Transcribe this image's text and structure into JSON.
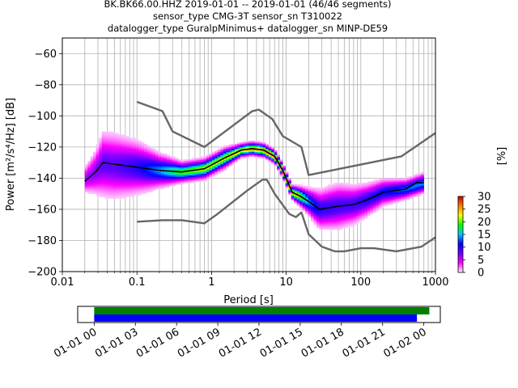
{
  "chart_data": {
    "type": "heatmap",
    "title_lines": [
      "BK.BK66.00.HHZ   2019-01-01 -- 2019-01-01  (46/46 segments)",
      "sensor_type CMG-3T sensor_sn T310022",
      "datalogger_type GuralpMinimus+ datalogger_sn MINP-DE59"
    ],
    "xlabel": "Period [s]",
    "ylabel": "Power [m²/s⁴/Hz] [dB]",
    "x_scale": "log",
    "xlim": [
      0.01,
      1000
    ],
    "ylim": [
      -200,
      -50
    ],
    "x_ticks": [
      {
        "value": 0.01,
        "label": "0.01"
      },
      {
        "value": 0.1,
        "label": "0.1"
      },
      {
        "value": 1,
        "label": "1"
      },
      {
        "value": 10,
        "label": "10"
      },
      {
        "value": 100,
        "label": "100"
      },
      {
        "value": 1000,
        "label": "1000"
      }
    ],
    "y_ticks": [
      {
        "value": -60,
        "label": "−60"
      },
      {
        "value": -80,
        "label": "−80"
      },
      {
        "value": -100,
        "label": "−100"
      },
      {
        "value": -120,
        "label": "−120"
      },
      {
        "value": -140,
        "label": "−140"
      },
      {
        "value": -160,
        "label": "−160"
      },
      {
        "value": -180,
        "label": "−180"
      },
      {
        "value": -200,
        "label": "−200"
      }
    ],
    "grid": true,
    "colorbar": {
      "label": "[%]",
      "min": 0,
      "max": 30,
      "ticks": [
        {
          "value": 0,
          "label": "0"
        },
        {
          "value": 5,
          "label": "5"
        },
        {
          "value": 10,
          "label": "10"
        },
        {
          "value": 15,
          "label": "15"
        },
        {
          "value": 20,
          "label": "20"
        },
        {
          "value": 25,
          "label": "25"
        },
        {
          "value": 30,
          "label": "30"
        }
      ],
      "colors": [
        "#ffffff",
        "#ff00ff",
        "#6a00ff",
        "#0000ff",
        "#00c8ff",
        "#00ff00",
        "#ffff00",
        "#ff8000",
        "#c80000"
      ]
    },
    "series": [
      {
        "color": "#666666",
        "points": [
          [
            0.1,
            -91
          ],
          [
            0.22,
            -97
          ],
          [
            0.3,
            -110
          ],
          [
            0.8,
            -120
          ],
          [
            3.5,
            -97
          ],
          [
            4.3,
            -96
          ],
          [
            6.5,
            -102
          ],
          [
            9,
            -113
          ],
          [
            16,
            -120
          ],
          [
            20,
            -138
          ],
          [
            350,
            -126
          ],
          [
            1000,
            -111
          ]
        ]
      },
      {
        "color": "#666666",
        "points": [
          [
            0.1,
            -168
          ],
          [
            0.22,
            -167
          ],
          [
            0.4,
            -167
          ],
          [
            0.8,
            -169
          ],
          [
            1.2,
            -163
          ],
          [
            3,
            -148
          ],
          [
            4.8,
            -141
          ],
          [
            5.5,
            -141
          ],
          [
            7,
            -150
          ],
          [
            11,
            -163
          ],
          [
            13.5,
            -165
          ],
          [
            16,
            -162
          ],
          [
            20,
            -176
          ],
          [
            30,
            -184
          ],
          [
            45,
            -187
          ],
          [
            60,
            -187
          ],
          [
            100,
            -185
          ],
          [
            150,
            -185
          ],
          [
            300,
            -187
          ],
          [
            650,
            -184
          ],
          [
            1000,
            -178
          ]
        ]
      },
      {
        "color": "#000000",
        "points": [
          [
            0.02,
            -142
          ],
          [
            0.028,
            -136
          ],
          [
            0.035,
            -130
          ],
          [
            0.05,
            -131
          ],
          [
            0.1,
            -133
          ],
          [
            0.2,
            -135
          ],
          [
            0.4,
            -136
          ],
          [
            0.8,
            -134
          ],
          [
            1.5,
            -127
          ],
          [
            2.5,
            -122
          ],
          [
            3.5,
            -121
          ],
          [
            5,
            -122
          ],
          [
            7,
            -126
          ],
          [
            9,
            -135
          ],
          [
            12,
            -149
          ],
          [
            16,
            -152
          ],
          [
            20,
            -155
          ],
          [
            28,
            -160
          ],
          [
            50,
            -158
          ],
          [
            80,
            -157
          ],
          [
            120,
            -154
          ],
          [
            200,
            -149
          ],
          [
            400,
            -147
          ],
          [
            550,
            -143
          ],
          [
            700,
            -143
          ]
        ]
      }
    ],
    "histogram_density": [
      {
        "period": 0.02,
        "mode": -141,
        "spread": 4,
        "peak": 6
      },
      {
        "period": 0.028,
        "mode": -136,
        "spread": 7,
        "peak": 7
      },
      {
        "period": 0.035,
        "mode": -131,
        "spread": 10,
        "peak": 8
      },
      {
        "period": 0.05,
        "mode": -132,
        "spread": 10,
        "peak": 8
      },
      {
        "period": 0.1,
        "mode": -133,
        "spread": 8,
        "peak": 10
      },
      {
        "period": 0.2,
        "mode": -135,
        "spread": 5,
        "peak": 14
      },
      {
        "period": 0.4,
        "mode": -136,
        "spread": 3,
        "peak": 20
      },
      {
        "period": 0.8,
        "mode": -134,
        "spread": 3,
        "peak": 22
      },
      {
        "period": 1.5,
        "mode": -127,
        "spread": 3,
        "peak": 22
      },
      {
        "period": 2.5,
        "mode": -122,
        "spread": 2,
        "peak": 24
      },
      {
        "period": 3.5,
        "mode": -121,
        "spread": 2,
        "peak": 26
      },
      {
        "period": 5,
        "mode": -122,
        "spread": 2,
        "peak": 26
      },
      {
        "period": 7,
        "mode": -126,
        "spread": 2,
        "peak": 26
      },
      {
        "period": 9,
        "mode": -135,
        "spread": 2,
        "peak": 26
      },
      {
        "period": 12,
        "mode": -149,
        "spread": 2,
        "peak": 26
      },
      {
        "period": 16,
        "mode": -152,
        "spread": 3,
        "peak": 20
      },
      {
        "period": 20,
        "mode": -155,
        "spread": 4,
        "peak": 14
      },
      {
        "period": 28,
        "mode": -160,
        "spread": 6,
        "peak": 10
      },
      {
        "period": 50,
        "mode": -158,
        "spread": 7,
        "peak": 9
      },
      {
        "period": 80,
        "mode": -157,
        "spread": 6,
        "peak": 9
      },
      {
        "period": 120,
        "mode": -154,
        "spread": 5,
        "peak": 10
      },
      {
        "period": 200,
        "mode": -149,
        "spread": 4,
        "peak": 11
      },
      {
        "period": 400,
        "mode": -147,
        "spread": 3,
        "peak": 13
      },
      {
        "period": 700,
        "mode": -143,
        "spread": 3,
        "peak": 14
      }
    ],
    "timeline": {
      "tick_labels": [
        "01-01 00",
        "01-01 03",
        "01-01 06",
        "01-01 09",
        "01-01 12",
        "01-01 15",
        "01-01 18",
        "01-01 21",
        "01-02 00"
      ],
      "tick_hours": [
        0,
        3,
        6,
        9,
        12,
        15,
        18,
        21,
        24
      ],
      "xlim_hours": [
        -1.2,
        25.2
      ],
      "bars": [
        {
          "color": "#008000",
          "start_hour": 0,
          "end_hour": 24.4
        },
        {
          "color": "#0000ff",
          "start_hour": 0,
          "end_hour": 23.5
        }
      ]
    }
  }
}
